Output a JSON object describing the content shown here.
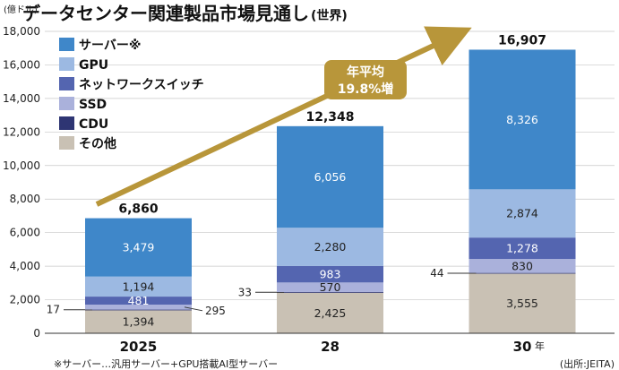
{
  "chart_data": {
    "type": "bar",
    "stacked": true,
    "title": "データセンター関連製品市場見通し",
    "title_suffix": "(世界)",
    "ylabel": "(億ドル)",
    "ylim": [
      0,
      18000
    ],
    "yticks": [
      0,
      2000,
      4000,
      6000,
      8000,
      10000,
      12000,
      14000,
      16000,
      18000
    ],
    "ytick_labels": [
      "0",
      "2,000",
      "4,000",
      "6,000",
      "8,000",
      "10,000",
      "12,000",
      "14,000",
      "16,000",
      "18,000"
    ],
    "categories": [
      "2025",
      "28",
      "30"
    ],
    "x_unit": "年",
    "series": [
      {
        "name": "その他",
        "values": [
          1394,
          2425,
          3555
        ],
        "labels": [
          "1,394",
          "2,425",
          "3,555"
        ],
        "color": "#c9c1b4"
      },
      {
        "name": "CDU",
        "values": [
          17,
          33,
          44
        ],
        "labels": [
          "17",
          "33",
          "44"
        ],
        "color": "#2e3573"
      },
      {
        "name": "SSD",
        "values": [
          295,
          570,
          830
        ],
        "labels": [
          "295",
          "570",
          "830"
        ],
        "color": "#aab1db"
      },
      {
        "name": "ネットワークスイッチ",
        "values": [
          481,
          983,
          1278
        ],
        "labels": [
          "481",
          "983",
          "1,278"
        ],
        "color": "#5465b0"
      },
      {
        "name": "GPU",
        "values": [
          1194,
          2280,
          2874
        ],
        "labels": [
          "1,194",
          "2,280",
          "2,874"
        ],
        "color": "#9cb9e2"
      },
      {
        "name": "サーバー※",
        "values": [
          3479,
          6056,
          8326
        ],
        "labels": [
          "3,479",
          "6,056",
          "8,326"
        ],
        "color": "#3f87c9"
      }
    ],
    "totals": [
      6860,
      12348,
      16907
    ],
    "total_labels": [
      "6,860",
      "12,348",
      "16,907"
    ],
    "legend_order": [
      "サーバー※",
      "GPU",
      "ネットワークスイッチ",
      "SSD",
      "CDU",
      "その他"
    ],
    "legend_position": "top-left",
    "annotation": {
      "line1": "年平均",
      "line2": "19.8%増",
      "color": "#b8963a"
    },
    "footnote": "※サーバー…汎用サーバー+GPU搭載AI型サーバー",
    "source": "(出所:JEITA)"
  }
}
